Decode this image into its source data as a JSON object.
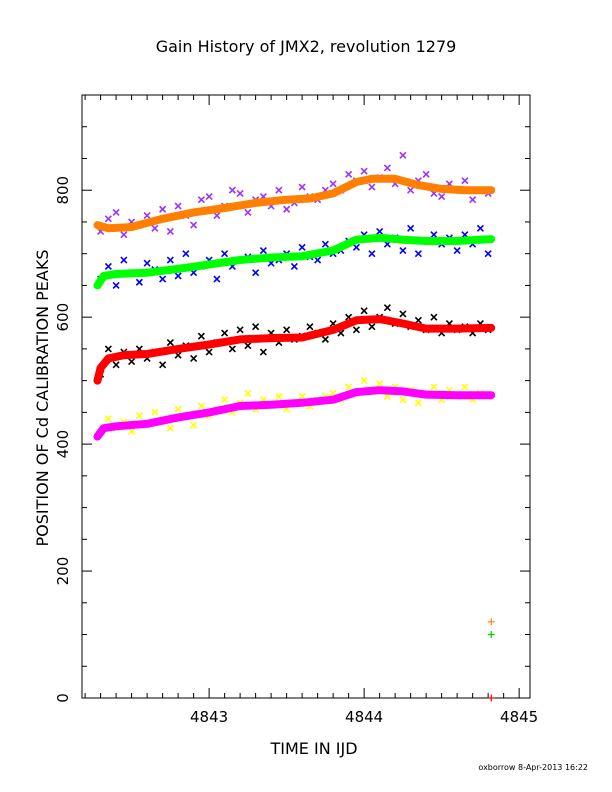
{
  "chart_data": {
    "type": "scatter",
    "title": "Gain History of JMX2, revolution 1279",
    "xlabel": "TIME IN IJD",
    "ylabel": "POSITION OF Cd CALIBRATION PEAKS",
    "xlim": [
      4842.18,
      4845.07
    ],
    "ylim": [
      0,
      950
    ],
    "x_ticks": [
      4843,
      4844,
      4845
    ],
    "y_ticks": [
      0,
      200,
      400,
      600,
      800
    ],
    "grid": false,
    "legend": "none",
    "footer": "oxborrow  8-Apr-2013 16:22",
    "series": [
      {
        "color": "#ff8000",
        "marker": "thick-line",
        "role": "smoothed",
        "x": [
          4842.28,
          4842.35,
          4842.5,
          4842.7,
          4842.9,
          4843.1,
          4843.3,
          4843.5,
          4843.65,
          4843.8,
          4843.95,
          4844.05,
          4844.2,
          4844.35,
          4844.5,
          4844.65,
          4844.82
        ],
        "y": [
          745,
          740,
          742,
          755,
          765,
          772,
          780,
          785,
          787,
          795,
          813,
          818,
          818,
          808,
          802,
          800,
          800
        ]
      },
      {
        "color": "#9933ff",
        "marker": "x",
        "role": "raw",
        "x": [
          4842.3,
          4842.35,
          4842.4,
          4842.45,
          4842.5,
          4842.55,
          4842.6,
          4842.65,
          4842.7,
          4842.75,
          4842.8,
          4842.85,
          4842.9,
          4842.95,
          4843.0,
          4843.05,
          4843.1,
          4843.15,
          4843.2,
          4843.25,
          4843.3,
          4843.35,
          4843.4,
          4843.45,
          4843.5,
          4843.55,
          4843.6,
          4843.65,
          4843.7,
          4843.75,
          4843.8,
          4843.85,
          4843.9,
          4843.95,
          4844.0,
          4844.05,
          4844.1,
          4844.15,
          4844.2,
          4844.25,
          4844.3,
          4844.35,
          4844.4,
          4844.45,
          4844.5,
          4844.55,
          4844.6,
          4844.65,
          4844.7,
          4844.75,
          4844.8
        ],
        "y": [
          735,
          755,
          765,
          730,
          750,
          745,
          760,
          740,
          770,
          735,
          775,
          760,
          745,
          785,
          790,
          760,
          775,
          800,
          795,
          765,
          785,
          790,
          775,
          800,
          770,
          780,
          805,
          790,
          785,
          800,
          810,
          800,
          825,
          815,
          830,
          805,
          820,
          835,
          810,
          855,
          800,
          815,
          825,
          795,
          790,
          810,
          800,
          815,
          785,
          800,
          795
        ]
      },
      {
        "color": "#00ff00",
        "marker": "thick-line",
        "role": "smoothed",
        "x": [
          4842.28,
          4842.32,
          4842.4,
          4842.6,
          4842.8,
          4843.0,
          4843.2,
          4843.4,
          4843.6,
          4843.8,
          4843.95,
          4844.1,
          4844.25,
          4844.4,
          4844.6,
          4844.82
        ],
        "y": [
          650,
          665,
          668,
          670,
          676,
          683,
          690,
          694,
          696,
          705,
          722,
          725,
          722,
          720,
          720,
          723
        ]
      },
      {
        "color": "#0000ff",
        "marker": "x",
        "role": "raw",
        "x": [
          4842.3,
          4842.35,
          4842.4,
          4842.45,
          4842.5,
          4842.55,
          4842.6,
          4842.65,
          4842.7,
          4842.75,
          4842.8,
          4842.85,
          4842.9,
          4842.95,
          4843.0,
          4843.05,
          4843.1,
          4843.15,
          4843.2,
          4843.25,
          4843.3,
          4843.35,
          4843.4,
          4843.45,
          4843.5,
          4843.55,
          4843.6,
          4843.65,
          4843.7,
          4843.75,
          4843.8,
          4843.85,
          4843.9,
          4843.95,
          4844.0,
          4844.05,
          4844.1,
          4844.15,
          4844.2,
          4844.25,
          4844.3,
          4844.35,
          4844.4,
          4844.45,
          4844.5,
          4844.55,
          4844.6,
          4844.65,
          4844.7,
          4844.75,
          4844.8
        ],
        "y": [
          660,
          680,
          650,
          690,
          670,
          655,
          685,
          675,
          660,
          690,
          665,
          700,
          670,
          680,
          690,
          660,
          700,
          680,
          690,
          695,
          670,
          705,
          685,
          690,
          700,
          680,
          710,
          695,
          690,
          715,
          700,
          705,
          720,
          710,
          730,
          700,
          735,
          715,
          725,
          705,
          740,
          700,
          720,
          730,
          715,
          725,
          705,
          730,
          715,
          740,
          700
        ]
      },
      {
        "color": "#ff0000",
        "marker": "thick-line",
        "role": "smoothed",
        "x": [
          4842.28,
          4842.3,
          4842.35,
          4842.45,
          4842.6,
          4842.8,
          4843.0,
          4843.2,
          4843.4,
          4843.6,
          4843.8,
          4843.95,
          4844.1,
          4844.25,
          4844.4,
          4844.6,
          4844.82
        ],
        "y": [
          500,
          520,
          535,
          540,
          542,
          550,
          557,
          565,
          567,
          568,
          580,
          595,
          597,
          590,
          582,
          582,
          583
        ]
      },
      {
        "color": "#000000",
        "marker": "x",
        "role": "raw",
        "x": [
          4842.3,
          4842.35,
          4842.4,
          4842.45,
          4842.5,
          4842.55,
          4842.6,
          4842.65,
          4842.7,
          4842.75,
          4842.8,
          4842.85,
          4842.9,
          4842.95,
          4843.0,
          4843.05,
          4843.1,
          4843.15,
          4843.2,
          4843.25,
          4843.3,
          4843.35,
          4843.4,
          4843.45,
          4843.5,
          4843.55,
          4843.6,
          4843.65,
          4843.7,
          4843.75,
          4843.8,
          4843.85,
          4843.9,
          4843.95,
          4844.0,
          4844.05,
          4844.1,
          4844.15,
          4844.2,
          4844.25,
          4844.3,
          4844.35,
          4844.4,
          4844.45,
          4844.5,
          4844.55,
          4844.6,
          4844.65,
          4844.7,
          4844.75,
          4844.8
        ],
        "y": [
          510,
          550,
          525,
          545,
          530,
          550,
          535,
          545,
          525,
          560,
          540,
          555,
          535,
          570,
          545,
          560,
          575,
          550,
          580,
          555,
          585,
          545,
          575,
          560,
          580,
          565,
          570,
          585,
          575,
          565,
          590,
          575,
          600,
          580,
          610,
          585,
          600,
          615,
          590,
          605,
          585,
          595,
          580,
          600,
          575,
          590,
          580,
          585,
          575,
          590,
          580
        ]
      },
      {
        "color": "#ff00ff",
        "marker": "thick-line",
        "role": "smoothed",
        "x": [
          4842.28,
          4842.32,
          4842.4,
          4842.6,
          4842.8,
          4843.0,
          4843.2,
          4843.4,
          4843.6,
          4843.8,
          4843.95,
          4844.1,
          4844.25,
          4844.4,
          4844.6,
          4844.82
        ],
        "y": [
          412,
          425,
          428,
          432,
          442,
          450,
          460,
          462,
          465,
          470,
          482,
          485,
          483,
          478,
          477,
          477
        ]
      },
      {
        "color": "#ffff00",
        "marker": "x",
        "role": "raw",
        "x": [
          4842.3,
          4842.35,
          4842.4,
          4842.45,
          4842.5,
          4842.55,
          4842.6,
          4842.65,
          4842.7,
          4842.75,
          4842.8,
          4842.85,
          4842.9,
          4842.95,
          4843.0,
          4843.05,
          4843.1,
          4843.15,
          4843.2,
          4843.25,
          4843.3,
          4843.35,
          4843.4,
          4843.45,
          4843.5,
          4843.55,
          4843.6,
          4843.65,
          4843.7,
          4843.75,
          4843.8,
          4843.85,
          4843.9,
          4843.95,
          4844.0,
          4844.05,
          4844.1,
          4844.15,
          4844.2,
          4844.25,
          4844.3,
          4844.35,
          4844.4,
          4844.45,
          4844.5,
          4844.55,
          4844.6,
          4844.65,
          4844.7,
          4844.75,
          4844.8
        ],
        "y": [
          420,
          440,
          425,
          435,
          420,
          445,
          430,
          450,
          440,
          425,
          455,
          445,
          430,
          460,
          445,
          455,
          470,
          450,
          465,
          480,
          455,
          470,
          460,
          475,
          455,
          465,
          475,
          460,
          470,
          475,
          480,
          470,
          490,
          480,
          500,
          485,
          495,
          475,
          490,
          470,
          485,
          465,
          480,
          490,
          470,
          485,
          475,
          490,
          470,
          480,
          475
        ]
      },
      {
        "color": "#ff8000",
        "marker": "+",
        "role": "outlier",
        "x": [
          4844.82
        ],
        "y": [
          120
        ]
      },
      {
        "color": "#00cc00",
        "marker": "+",
        "role": "outlier",
        "x": [
          4844.82
        ],
        "y": [
          100
        ]
      },
      {
        "color": "#ff0000",
        "marker": "+",
        "role": "outlier",
        "x": [
          4844.82
        ],
        "y": [
          0
        ]
      }
    ]
  }
}
